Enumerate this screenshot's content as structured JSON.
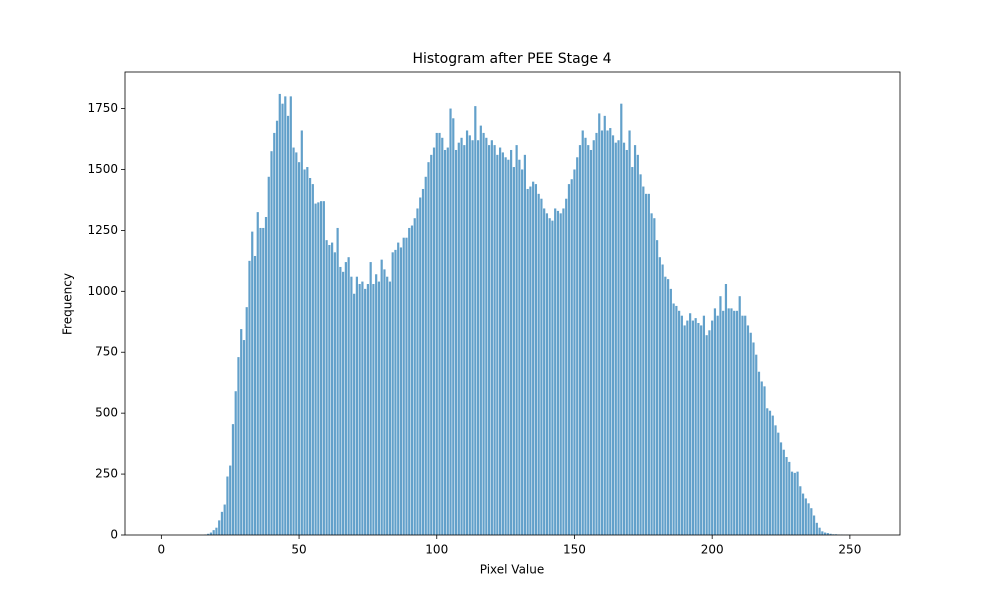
{
  "chart_data": {
    "type": "bar",
    "title": "Histogram after PEE Stage 4",
    "xlabel": "Pixel Value",
    "ylabel": "Frequency",
    "x": [
      0,
      1,
      2,
      3,
      4,
      5,
      6,
      7,
      8,
      9,
      10,
      11,
      12,
      13,
      14,
      15,
      16,
      17,
      18,
      19,
      20,
      21,
      22,
      23,
      24,
      25,
      26,
      27,
      28,
      29,
      30,
      31,
      32,
      33,
      34,
      35,
      36,
      37,
      38,
      39,
      40,
      41,
      42,
      43,
      44,
      45,
      46,
      47,
      48,
      49,
      50,
      51,
      52,
      53,
      54,
      55,
      56,
      57,
      58,
      59,
      60,
      61,
      62,
      63,
      64,
      65,
      66,
      67,
      68,
      69,
      70,
      71,
      72,
      73,
      74,
      75,
      76,
      77,
      78,
      79,
      80,
      81,
      82,
      83,
      84,
      85,
      86,
      87,
      88,
      89,
      90,
      91,
      92,
      93,
      94,
      95,
      96,
      97,
      98,
      99,
      100,
      101,
      102,
      103,
      104,
      105,
      106,
      107,
      108,
      109,
      110,
      111,
      112,
      113,
      114,
      115,
      116,
      117,
      118,
      119,
      120,
      121,
      122,
      123,
      124,
      125,
      126,
      127,
      128,
      129,
      130,
      131,
      132,
      133,
      134,
      135,
      136,
      137,
      138,
      139,
      140,
      141,
      142,
      143,
      144,
      145,
      146,
      147,
      148,
      149,
      150,
      151,
      152,
      153,
      154,
      155,
      156,
      157,
      158,
      159,
      160,
      161,
      162,
      163,
      164,
      165,
      166,
      167,
      168,
      169,
      170,
      171,
      172,
      173,
      174,
      175,
      176,
      177,
      178,
      179,
      180,
      181,
      182,
      183,
      184,
      185,
      186,
      187,
      188,
      189,
      190,
      191,
      192,
      193,
      194,
      195,
      196,
      197,
      198,
      199,
      200,
      201,
      202,
      203,
      204,
      205,
      206,
      207,
      208,
      209,
      210,
      211,
      212,
      213,
      214,
      215,
      216,
      217,
      218,
      219,
      220,
      221,
      222,
      223,
      224,
      225,
      226,
      227,
      228,
      229,
      230,
      231,
      232,
      233,
      234,
      235,
      236,
      237,
      238,
      239,
      240,
      241,
      242,
      243,
      244,
      245,
      246,
      247,
      248,
      249,
      250,
      251,
      252,
      253,
      254,
      255
    ],
    "values": [
      0,
      0,
      0,
      0,
      0,
      0,
      0,
      0,
      0,
      0,
      0,
      0,
      0,
      0,
      0,
      0,
      2,
      5,
      10,
      20,
      30,
      60,
      95,
      125,
      240,
      285,
      455,
      590,
      730,
      845,
      800,
      935,
      1125,
      1245,
      1145,
      1325,
      1260,
      1260,
      1305,
      1470,
      1575,
      1650,
      1700,
      1810,
      1770,
      1800,
      1720,
      1800,
      1590,
      1570,
      1530,
      1660,
      1500,
      1510,
      1465,
      1440,
      1360,
      1365,
      1370,
      1370,
      1210,
      1190,
      1200,
      1160,
      1260,
      1100,
      1080,
      1120,
      1140,
      1060,
      990,
      1060,
      1030,
      1040,
      1010,
      1030,
      1120,
      1030,
      1070,
      1040,
      1130,
      1090,
      1060,
      1040,
      1160,
      1170,
      1200,
      1180,
      1220,
      1220,
      1260,
      1270,
      1300,
      1340,
      1385,
      1420,
      1470,
      1530,
      1560,
      1590,
      1650,
      1650,
      1630,
      1580,
      1590,
      1750,
      1710,
      1580,
      1610,
      1630,
      1600,
      1660,
      1640,
      1620,
      1760,
      1620,
      1680,
      1650,
      1630,
      1600,
      1620,
      1600,
      1560,
      1590,
      1570,
      1550,
      1540,
      1580,
      1510,
      1600,
      1540,
      1500,
      1560,
      1420,
      1430,
      1450,
      1440,
      1400,
      1380,
      1340,
      1320,
      1300,
      1290,
      1340,
      1330,
      1320,
      1340,
      1380,
      1440,
      1460,
      1500,
      1550,
      1600,
      1660,
      1630,
      1600,
      1580,
      1620,
      1650,
      1730,
      1660,
      1720,
      1660,
      1670,
      1640,
      1610,
      1620,
      1770,
      1610,
      1580,
      1660,
      1510,
      1600,
      1560,
      1480,
      1430,
      1400,
      1400,
      1320,
      1300,
      1210,
      1140,
      1110,
      1060,
      1050,
      1010,
      950,
      940,
      920,
      900,
      860,
      880,
      910,
      880,
      890,
      870,
      860,
      900,
      820,
      840,
      880,
      930,
      900,
      980,
      920,
      1030,
      930,
      930,
      920,
      920,
      980,
      900,
      900,
      860,
      830,
      790,
      740,
      670,
      630,
      610,
      520,
      510,
      490,
      450,
      420,
      380,
      350,
      320,
      300,
      260,
      255,
      260,
      200,
      170,
      150,
      130,
      110,
      80,
      50,
      30,
      15,
      10,
      8,
      5,
      3,
      3,
      2,
      2,
      1,
      1,
      1,
      0,
      0,
      0,
      0,
      0
    ],
    "color": "#1f77b4",
    "alpha": 0.7,
    "xlim": [
      -13.2,
      268.2
    ],
    "xticks": [
      0,
      50,
      100,
      150,
      200,
      250
    ],
    "ylim": [
      0,
      1900
    ],
    "yticks": [
      0,
      250,
      500,
      750,
      1000,
      1250,
      1500,
      1750
    ]
  }
}
